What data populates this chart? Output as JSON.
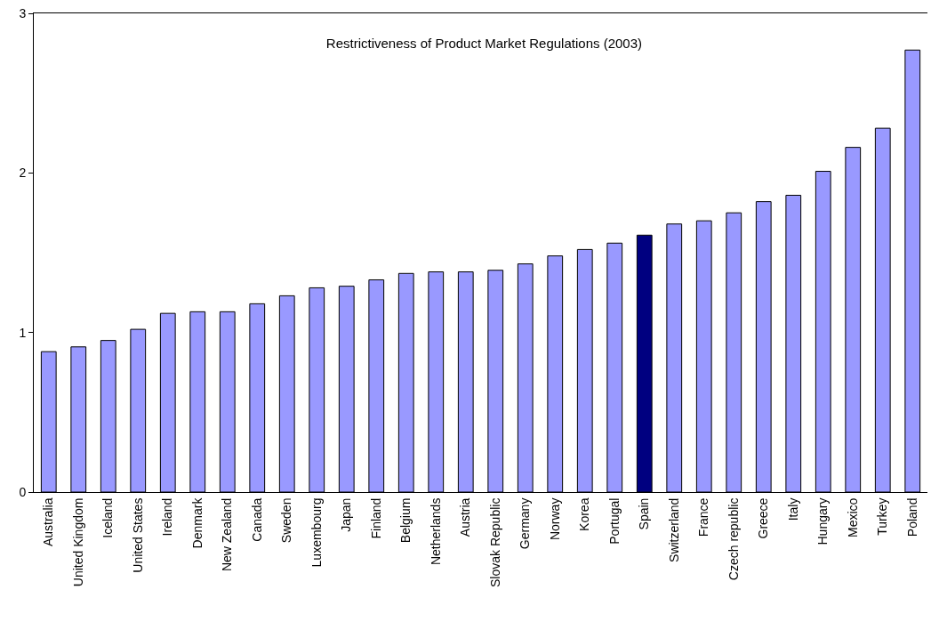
{
  "chart_data": {
    "type": "bar",
    "title": "Restrictiveness of Product Market Regulations (2003)",
    "categories": [
      "Australia",
      "United Kingdom",
      "Iceland",
      "United States",
      "Ireland",
      "Denmark",
      "New Zealand",
      "Canada",
      "Sweden",
      "Luxembourg",
      "Japan",
      "Finland",
      "Belgium",
      "Netherlands",
      "Austria",
      "Slovak Republic",
      "Germany",
      "Norway",
      "Korea",
      "Portugal",
      "Spain",
      "Switzerland",
      "France",
      "Czech republic",
      "Greece",
      "Italy",
      "Hungary",
      "Mexico",
      "Turkey",
      "Poland"
    ],
    "values": [
      0.88,
      0.91,
      0.95,
      1.02,
      1.12,
      1.13,
      1.13,
      1.18,
      1.23,
      1.28,
      1.29,
      1.33,
      1.37,
      1.38,
      1.38,
      1.39,
      1.43,
      1.48,
      1.52,
      1.56,
      1.61,
      1.68,
      1.7,
      1.75,
      1.82,
      1.86,
      2.01,
      2.16,
      2.28,
      2.77
    ],
    "colors": [
      "#9999ff",
      "#9999ff",
      "#9999ff",
      "#9999ff",
      "#9999ff",
      "#9999ff",
      "#9999ff",
      "#9999ff",
      "#9999ff",
      "#9999ff",
      "#9999ff",
      "#9999ff",
      "#9999ff",
      "#9999ff",
      "#9999ff",
      "#9999ff",
      "#9999ff",
      "#9999ff",
      "#9999ff",
      "#9999ff",
      "#000080",
      "#9999ff",
      "#9999ff",
      "#9999ff",
      "#9999ff",
      "#9999ff",
      "#9999ff",
      "#9999ff",
      "#9999ff",
      "#9999ff"
    ],
    "ylim": [
      0,
      3
    ],
    "yticks": [
      0,
      1,
      2,
      3
    ]
  }
}
